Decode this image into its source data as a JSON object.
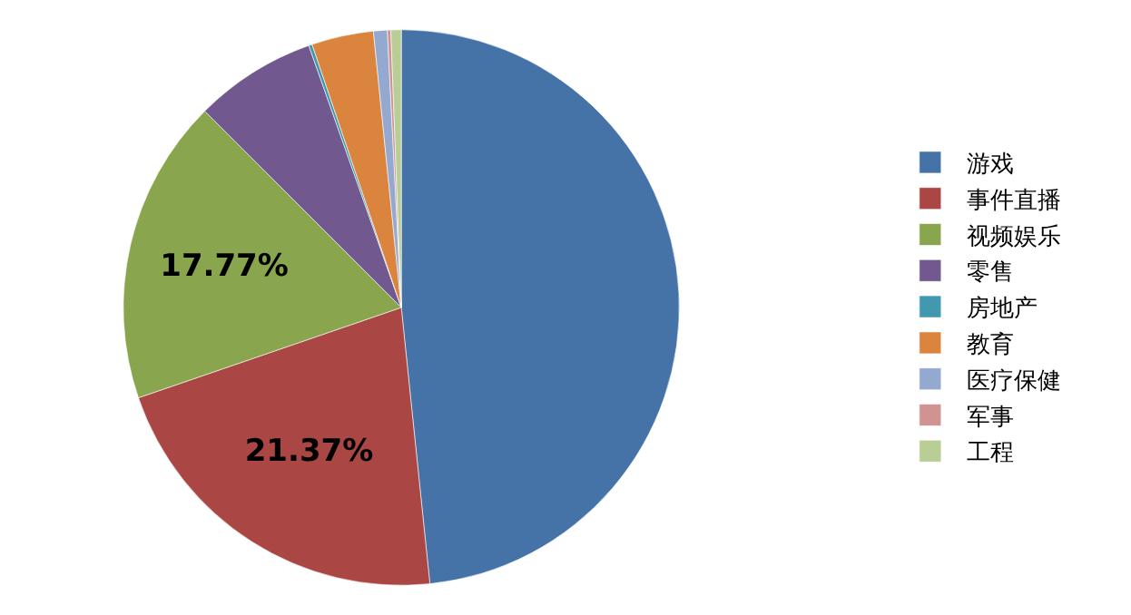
{
  "chart_data": {
    "type": "pie",
    "categories": [
      "游戏",
      "事件直播",
      "视频娱乐",
      "零售",
      "房地产",
      "教育",
      "医疗保健",
      "军事",
      "工程"
    ],
    "values": [
      48.36,
      21.37,
      17.77,
      7.1,
      0.2,
      3.6,
      0.8,
      0.2,
      0.6
    ],
    "colors": [
      "#4572a7",
      "#aa4643",
      "#89a54e",
      "#71588f",
      "#4198af",
      "#db843d",
      "#93a9cf",
      "#d19392",
      "#b9cd96"
    ],
    "value_labels": [
      null,
      "21.37%",
      "17.77%",
      null,
      null,
      null,
      null,
      null,
      null
    ],
    "legend": "right"
  }
}
